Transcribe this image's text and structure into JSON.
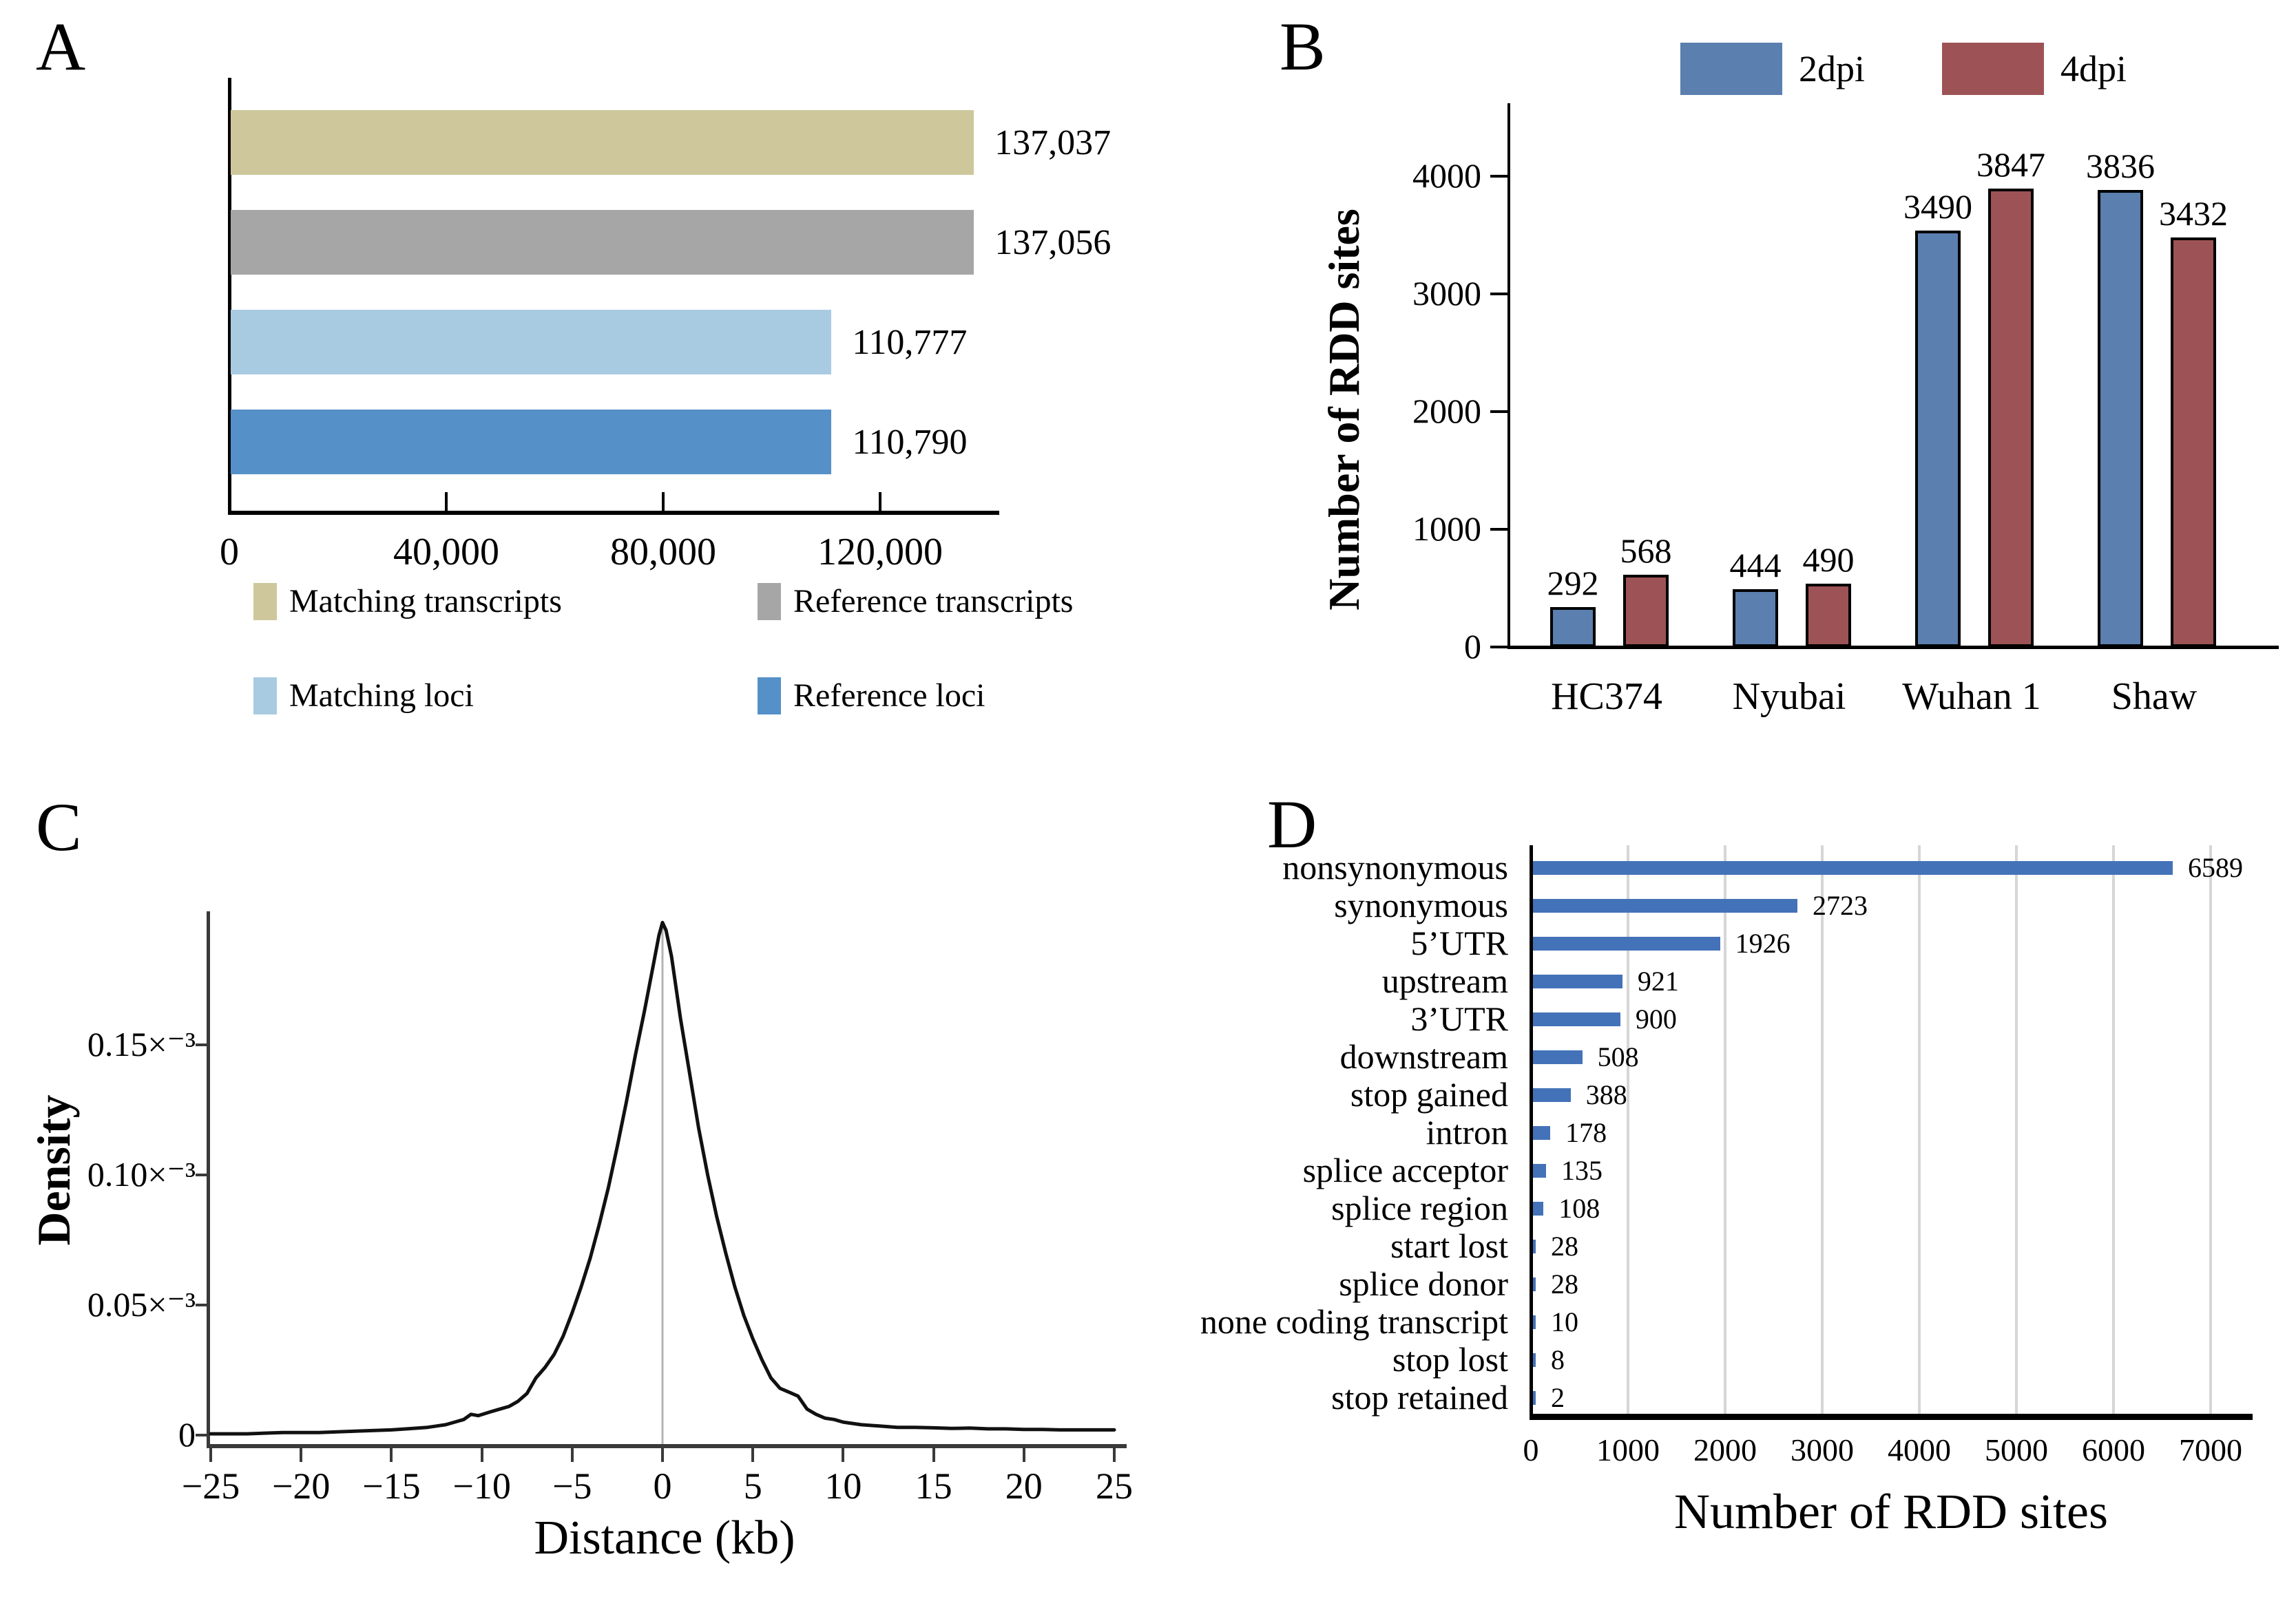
{
  "figure": {
    "panel_labels": [
      "A",
      "B",
      "C",
      "D"
    ]
  },
  "colors": {
    "khaki": "#cdc79b",
    "gray": "#a6a6a6",
    "light_blue": "#a9cbe2",
    "steel_blue": "#5590c8",
    "b_blue": "#5b7fae",
    "b_red": "#9d5355",
    "d_blue": "#4472b8",
    "gridline": "#d6d6d6",
    "zero_line": "#b4b4b4",
    "curve": "#111111"
  },
  "chart_data": [
    {
      "id": "A",
      "type": "bar",
      "orientation": "horizontal",
      "categories": [
        "Matching transcripts",
        "Reference transcripts",
        "Matching loci",
        "Reference loci"
      ],
      "values": [
        137037,
        137056,
        110777,
        110790
      ],
      "value_labels": [
        "137,037",
        "137,056",
        "110,777",
        "110,790"
      ],
      "bar_colors": [
        "#cdc79b",
        "#a6a6a6",
        "#a9cbe2",
        "#5590c8"
      ],
      "xlim": [
        0,
        142000
      ],
      "xticks": {
        "values": [
          0,
          40000,
          80000,
          120000
        ],
        "labels": [
          "0",
          "40,000",
          "80,000",
          "120,000"
        ]
      },
      "legend": [
        {
          "label": "Matching transcripts",
          "color": "#cdc79b"
        },
        {
          "label": "Reference transcripts",
          "color": "#a6a6a6"
        },
        {
          "label": "Matching loci",
          "color": "#a9cbe2"
        },
        {
          "label": "Reference loci",
          "color": "#5590c8"
        }
      ],
      "grid": false
    },
    {
      "id": "B",
      "type": "bar",
      "grouped": true,
      "categories": [
        "HC374",
        "Nyubai",
        "Wuhan 1",
        "Shaw"
      ],
      "series": [
        {
          "name": "2dpi",
          "color": "#5b7fae",
          "values": [
            292,
            444,
            3490,
            3836
          ]
        },
        {
          "name": "4dpi",
          "color": "#9d5355",
          "values": [
            568,
            490,
            3847,
            3432
          ]
        }
      ],
      "ylabel": "Number of RDD sites",
      "yticks": {
        "values": [
          0,
          1000,
          2000,
          3000,
          4000
        ],
        "labels": [
          "0",
          "1000",
          "2000",
          "3000",
          "4000"
        ]
      },
      "ylim": [
        0,
        4400
      ],
      "legend_position": "top",
      "grid": false
    },
    {
      "id": "C",
      "type": "line",
      "xlabel": "Distance (kb)",
      "ylabel": "Density",
      "xlim": [
        -25,
        25
      ],
      "ylim_e3": [
        0,
        0.205
      ],
      "y_unit": "×10⁻³",
      "xticks": {
        "values": [
          -25,
          -20,
          -15,
          -10,
          -5,
          0,
          5,
          10,
          15,
          20,
          25
        ],
        "labels": [
          "−25",
          "−20",
          "−15",
          "−10",
          "−5",
          "0",
          "5",
          "10",
          "15",
          "20",
          "25"
        ]
      },
      "yticks": {
        "values_e3": [
          0,
          0.05,
          0.1,
          0.15
        ],
        "labels": [
          "0",
          "0.05×⁻³",
          "0.10×⁻³",
          "0.15×⁻³"
        ]
      },
      "zero_reference_line_x": 0,
      "grid": false,
      "points_e3": [
        [
          -25,
          0.0005
        ],
        [
          -23,
          0.0005
        ],
        [
          -21,
          0.001
        ],
        [
          -19,
          0.001
        ],
        [
          -17,
          0.0015
        ],
        [
          -15,
          0.002
        ],
        [
          -14,
          0.0025
        ],
        [
          -13,
          0.003
        ],
        [
          -12,
          0.004
        ],
        [
          -11.5,
          0.005
        ],
        [
          -11,
          0.006
        ],
        [
          -10.6,
          0.008
        ],
        [
          -10.2,
          0.0075
        ],
        [
          -9.5,
          0.009
        ],
        [
          -9,
          0.01
        ],
        [
          -8.5,
          0.011
        ],
        [
          -8,
          0.013
        ],
        [
          -7.5,
          0.016
        ],
        [
          -7,
          0.022
        ],
        [
          -6.5,
          0.026
        ],
        [
          -6,
          0.031
        ],
        [
          -5.5,
          0.038
        ],
        [
          -5,
          0.047
        ],
        [
          -4.5,
          0.057
        ],
        [
          -4,
          0.068
        ],
        [
          -3.5,
          0.081
        ],
        [
          -3,
          0.095
        ],
        [
          -2.5,
          0.111
        ],
        [
          -2,
          0.128
        ],
        [
          -1.5,
          0.146
        ],
        [
          -1,
          0.163
        ],
        [
          -0.5,
          0.181
        ],
        [
          -0.2,
          0.192
        ],
        [
          0,
          0.197
        ],
        [
          0.2,
          0.194
        ],
        [
          0.5,
          0.184
        ],
        [
          1,
          0.16
        ],
        [
          1.5,
          0.139
        ],
        [
          2,
          0.118
        ],
        [
          2.5,
          0.1
        ],
        [
          3,
          0.084
        ],
        [
          3.5,
          0.07
        ],
        [
          4,
          0.057
        ],
        [
          4.5,
          0.046
        ],
        [
          5,
          0.037
        ],
        [
          5.5,
          0.029
        ],
        [
          6,
          0.022
        ],
        [
          6.5,
          0.018
        ],
        [
          7,
          0.0165
        ],
        [
          7.5,
          0.015
        ],
        [
          8,
          0.01
        ],
        [
          8.5,
          0.008
        ],
        [
          9,
          0.0065
        ],
        [
          9.5,
          0.006
        ],
        [
          10,
          0.005
        ],
        [
          11,
          0.004
        ],
        [
          12,
          0.0035
        ],
        [
          13,
          0.003
        ],
        [
          14,
          0.003
        ],
        [
          15,
          0.0028
        ],
        [
          16,
          0.0026
        ],
        [
          17,
          0.0027
        ],
        [
          18,
          0.0024
        ],
        [
          19,
          0.0024
        ],
        [
          20,
          0.0022
        ],
        [
          21,
          0.0022
        ],
        [
          22,
          0.002
        ],
        [
          23,
          0.002
        ],
        [
          24,
          0.002
        ],
        [
          25,
          0.002
        ]
      ]
    },
    {
      "id": "D",
      "type": "bar",
      "orientation": "horizontal",
      "categories": [
        "nonsynonymous",
        "synonymous",
        "5’UTR",
        "upstream",
        "3’UTR",
        "downstream",
        "stop gained",
        "intron",
        "splice acceptor",
        "splice region",
        "start lost",
        "splice donor",
        "none coding transcript",
        "stop lost",
        "stop retained"
      ],
      "values": [
        6589,
        2723,
        1926,
        921,
        900,
        508,
        388,
        178,
        135,
        108,
        28,
        28,
        10,
        8,
        2
      ],
      "value_labels": [
        "6589",
        "2723",
        "1926",
        "921",
        "900",
        "508",
        "388",
        "178",
        "135",
        "108",
        "28",
        "28",
        "10",
        "8",
        "2"
      ],
      "bar_color": "#4472b8",
      "xlabel": "Number of RDD sites",
      "xlim": [
        0,
        7400
      ],
      "xticks": {
        "values": [
          0,
          1000,
          2000,
          3000,
          4000,
          5000,
          6000,
          7000
        ],
        "labels": [
          "0",
          "1000",
          "2000",
          "3000",
          "4000",
          "5000",
          "6000",
          "7000"
        ]
      },
      "grid": true
    }
  ]
}
